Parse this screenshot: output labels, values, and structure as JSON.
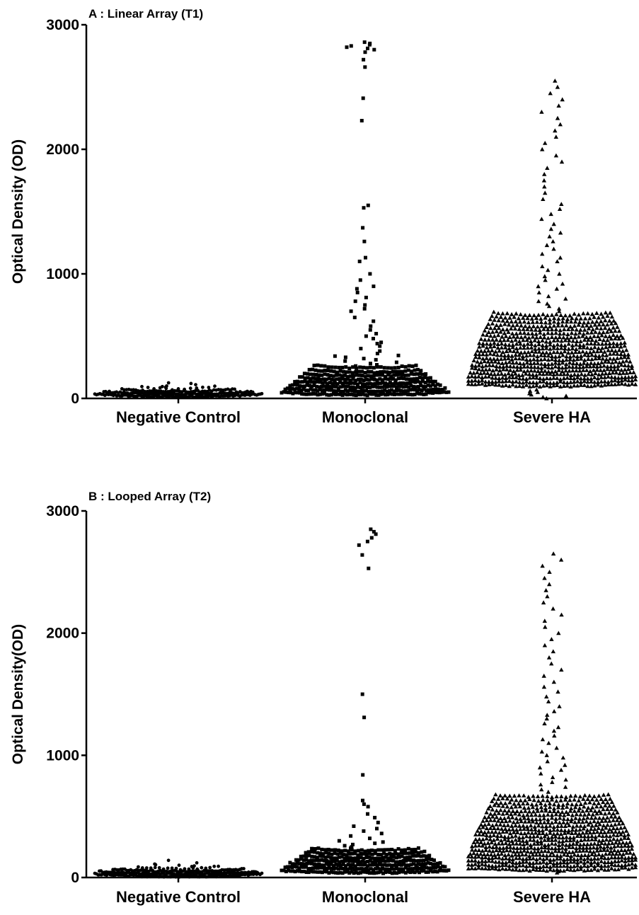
{
  "chart_data": [
    {
      "type": "scatter",
      "title": "A : Linear Array (T1)",
      "xlabel": "",
      "ylabel": "Optical  Density (OD)",
      "ylim": [
        0,
        3000
      ],
      "yticks": [
        "0",
        "1000",
        "2000",
        "3000"
      ],
      "categories": [
        "Negative Control",
        "Monoclonal",
        "Severe HA"
      ],
      "series": [
        {
          "marker": "circle",
          "dense_bands": [
            [
              15,
              600
            ],
            [
              35,
              500
            ],
            [
              55,
              300
            ],
            [
              75,
              80
            ]
          ],
          "sparse_values": [
            90,
            95,
            100,
            110,
            120,
            125
          ]
        },
        {
          "marker": "square",
          "dense_bands": [
            [
              30,
              450
            ],
            [
              60,
              420
            ],
            [
              90,
              380
            ],
            [
              120,
              340
            ],
            [
              150,
              300
            ],
            [
              180,
              260
            ],
            [
              210,
              220
            ],
            [
              245,
              180
            ]
          ],
          "sparse_values": [
            260,
            270,
            280,
            290,
            300,
            310,
            320,
            330,
            340,
            345,
            360,
            380,
            400,
            420,
            440,
            450,
            480,
            500,
            520,
            550,
            580,
            620,
            650,
            700,
            720,
            750,
            780,
            810,
            850,
            880,
            900,
            950,
            1000,
            1100,
            1130,
            1260,
            1370,
            1530,
            1550,
            2230,
            2410,
            2660,
            2720,
            2780,
            2800,
            2810,
            2820,
            2830,
            2840,
            2850,
            2860
          ]
        },
        {
          "marker": "triangle",
          "dense_bands": [
            [
              100,
              300
            ],
            [
              130,
              300
            ],
            [
              160,
              300
            ],
            [
              190,
              290
            ],
            [
              220,
              280
            ],
            [
              250,
              280
            ],
            [
              280,
              270
            ],
            [
              310,
              260
            ],
            [
              340,
              260
            ],
            [
              370,
              250
            ],
            [
              400,
              240
            ],
            [
              430,
              240
            ],
            [
              460,
              230
            ],
            [
              490,
              220
            ],
            [
              520,
              210
            ],
            [
              550,
              200
            ],
            [
              580,
              190
            ],
            [
              610,
              180
            ],
            [
              640,
              170
            ],
            [
              670,
              160
            ]
          ],
          "sparse_values": [
            0,
            10,
            20,
            30,
            40,
            50,
            60,
            70,
            700,
            720,
            740,
            760,
            780,
            800,
            820,
            850,
            880,
            900,
            920,
            950,
            980,
            1000,
            1030,
            1060,
            1100,
            1130,
            1160,
            1200,
            1230,
            1260,
            1300,
            1330,
            1360,
            1400,
            1440,
            1480,
            1520,
            1560,
            1600,
            1650,
            1700,
            1750,
            1800,
            1850,
            1900,
            1950,
            2000,
            2050,
            2100,
            2150,
            2200,
            2250,
            2300,
            2350,
            2400,
            2450,
            2500,
            2550
          ]
        }
      ]
    },
    {
      "type": "scatter",
      "title": "B : Looped Array (T2)",
      "xlabel": "",
      "ylabel": "Optical Density(OD)",
      "ylim": [
        0,
        3000
      ],
      "yticks": [
        "0",
        "1000",
        "2000",
        "3000"
      ],
      "categories": [
        "Negative Control",
        "Monoclonal",
        "Severe HA"
      ],
      "series": [
        {
          "marker": "circle",
          "dense_bands": [
            [
              10,
              600
            ],
            [
              30,
              550
            ],
            [
              50,
              400
            ],
            [
              70,
              120
            ]
          ],
          "sparse_values": [
            90,
            95,
            100,
            105,
            110,
            120,
            140
          ]
        },
        {
          "marker": "square",
          "dense_bands": [
            [
              40,
              450
            ],
            [
              70,
              420
            ],
            [
              100,
              380
            ],
            [
              130,
              330
            ],
            [
              160,
              290
            ],
            [
              190,
              250
            ],
            [
              220,
              200
            ]
          ],
          "sparse_values": [
            240,
            250,
            260,
            270,
            280,
            290,
            300,
            320,
            340,
            360,
            380,
            400,
            420,
            450,
            490,
            520,
            580,
            600,
            630,
            840,
            1310,
            1500,
            2530,
            2640,
            2720,
            2750,
            2780,
            2810,
            2830,
            2850
          ]
        },
        {
          "marker": "triangle",
          "dense_bands": [
            [
              60,
              300
            ],
            [
              90,
              300
            ],
            [
              120,
              300
            ],
            [
              150,
              300
            ],
            [
              180,
              290
            ],
            [
              210,
              280
            ],
            [
              240,
              280
            ],
            [
              270,
              270
            ],
            [
              300,
              260
            ],
            [
              330,
              260
            ],
            [
              360,
              250
            ],
            [
              390,
              240
            ],
            [
              420,
              230
            ],
            [
              450,
              220
            ],
            [
              480,
              210
            ],
            [
              510,
              200
            ],
            [
              540,
              190
            ],
            [
              570,
              180
            ],
            [
              600,
              170
            ],
            [
              630,
              160
            ],
            [
              660,
              150
            ]
          ],
          "sparse_values": [
            40,
            50,
            700,
            720,
            740,
            760,
            780,
            800,
            820,
            850,
            880,
            900,
            920,
            950,
            980,
            1000,
            1030,
            1060,
            1100,
            1130,
            1160,
            1200,
            1230,
            1260,
            1300,
            1330,
            1360,
            1400,
            1440,
            1480,
            1520,
            1560,
            1600,
            1650,
            1700,
            1750,
            1800,
            1850,
            1900,
            1950,
            2000,
            2050,
            2100,
            2150,
            2200,
            2250,
            2300,
            2350,
            2400,
            2450,
            2500,
            2550,
            2600,
            2650
          ]
        }
      ]
    }
  ]
}
